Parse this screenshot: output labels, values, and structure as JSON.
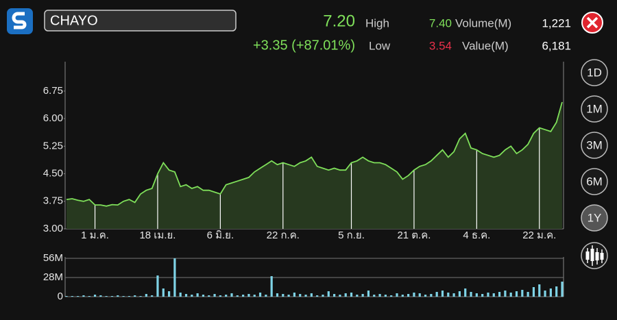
{
  "header": {
    "symbol": "CHAYO",
    "last": "7.20",
    "change": "+3.35 (+87.01%)",
    "high_label": "High",
    "high": "7.40",
    "low_label": "Low",
    "low": "3.54",
    "volume_label": "Volume(M)",
    "volume": "1,221",
    "value_label": "Value(M)",
    "value": "6,181"
  },
  "buttons": [
    "1D",
    "1M",
    "3M",
    "6M",
    "1Y"
  ],
  "selected_button": 4,
  "chart_data": [
    {
      "type": "area",
      "color": "#7fe05a",
      "fill": "#27391f",
      "categories": [
        null,
        null,
        null,
        null,
        null,
        "1 ม.ค.",
        null,
        null,
        null,
        null,
        null,
        null,
        null,
        null,
        null,
        null,
        "18 เม.ย.",
        null,
        null,
        null,
        null,
        null,
        null,
        null,
        null,
        null,
        null,
        "6 มิ.ย.",
        null,
        null,
        null,
        null,
        null,
        null,
        null,
        null,
        null,
        null,
        "22 ก.ค.",
        null,
        null,
        null,
        null,
        null,
        null,
        null,
        null,
        null,
        null,
        null,
        "5 ก.ย.",
        null,
        null,
        null,
        null,
        null,
        null,
        null,
        null,
        null,
        null,
        "21 ต.ค.",
        null,
        null,
        null,
        null,
        null,
        null,
        null,
        null,
        null,
        null,
        "4 ธ.ค.",
        null,
        null,
        null,
        null,
        null,
        null,
        null,
        null,
        null,
        null,
        "22 ม.ค.",
        null,
        null,
        null,
        null
      ],
      "values": [
        3.8,
        3.82,
        3.78,
        3.75,
        3.8,
        3.65,
        3.65,
        3.62,
        3.66,
        3.65,
        3.75,
        3.8,
        3.72,
        3.95,
        4.05,
        4.1,
        4.5,
        4.8,
        4.6,
        4.55,
        4.15,
        4.2,
        4.1,
        4.15,
        4.05,
        4.05,
        4.0,
        3.95,
        4.2,
        4.25,
        4.3,
        4.35,
        4.4,
        4.55,
        4.65,
        4.75,
        4.85,
        4.75,
        4.8,
        4.75,
        4.7,
        4.8,
        4.85,
        4.95,
        4.7,
        4.65,
        4.6,
        4.65,
        4.6,
        4.6,
        4.8,
        4.85,
        4.95,
        4.85,
        4.8,
        4.8,
        4.75,
        4.65,
        4.55,
        4.35,
        4.45,
        4.6,
        4.7,
        4.75,
        4.85,
        5.0,
        5.15,
        4.95,
        5.1,
        5.45,
        5.6,
        5.2,
        5.15,
        5.05,
        5.0,
        4.95,
        5.0,
        5.15,
        5.25,
        5.05,
        5.15,
        5.3,
        5.6,
        5.75,
        5.7,
        5.65,
        5.9,
        6.45
      ],
      "ylim": [
        3.0,
        7.55
      ],
      "yticks": [
        {
          "value": 3,
          "label": "3.00"
        },
        {
          "value": 3.75,
          "label": "3.75"
        },
        {
          "value": 4.5,
          "label": "4.50"
        },
        {
          "value": 5.25,
          "label": "5.25"
        },
        {
          "value": 6,
          "label": "6.00"
        },
        {
          "value": 6.75,
          "label": "6.75"
        }
      ]
    },
    {
      "type": "bar",
      "color": "#7fd3e6",
      "values": [
        1,
        1,
        1,
        2,
        1,
        3,
        2,
        1,
        1,
        2,
        1,
        1,
        2,
        1,
        4,
        2,
        31,
        12,
        8,
        56,
        6,
        4,
        3,
        5,
        3,
        2,
        4,
        2,
        3,
        5,
        2,
        3,
        4,
        3,
        6,
        3,
        30,
        5,
        4,
        3,
        6,
        4,
        3,
        5,
        2,
        3,
        8,
        4,
        3,
        5,
        6,
        3,
        4,
        9,
        3,
        4,
        3,
        2,
        5,
        3,
        4,
        6,
        5,
        3,
        4,
        7,
        9,
        6,
        5,
        8,
        12,
        7,
        5,
        4,
        6,
        5,
        7,
        9,
        6,
        8,
        10,
        7,
        14,
        18,
        9,
        12,
        15,
        22
      ],
      "ylim": [
        0,
        58
      ],
      "yticks": [
        0,
        {
          "value": 28,
          "label": "28M"
        },
        {
          "value": 56,
          "label": "56M"
        }
      ]
    }
  ]
}
